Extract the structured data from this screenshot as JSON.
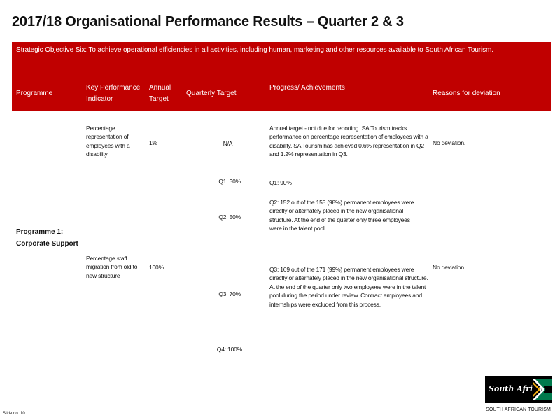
{
  "title": "2017/18 Organisational Performance Results – Quarter 2 & 3",
  "objective": "Strategic Objective Six: To achieve operational efficiencies in all activities, including human, marketing and other resources available to South African Tourism.",
  "headers": {
    "programme": "Programme",
    "kpi": "Key Performance Indicator",
    "annual_target": "Annual Target",
    "quarterly_target": "Quarterly Target",
    "progress": "Progress/ Achievements",
    "reasons": "Reasons for deviation"
  },
  "programme": "Programme 1: Corporate Support",
  "rows": [
    {
      "kpi": "Percentage representation of employees with a disability",
      "annual_target": "1%",
      "quarterly_target": "N/A",
      "progress": "Annual target - not due for reporting. SA Tourism tracks performance on percentage representation of employees with a disability. SA Tourism has achieved 0.6% representation in Q2 and 1.2% representation in Q3.",
      "reason": "No deviation."
    },
    {
      "kpi": "Percentage staff migration from old to new structure",
      "annual_target": "100%",
      "reason": "No deviation.",
      "quarters": [
        {
          "target": "Q1: 30%",
          "progress": "Q1: 90%"
        },
        {
          "target": "Q2: 50%",
          "progress": "Q2: 152 out of the 155 (98%) permanent employees were directly or alternately placed in the new organisational structure. At the end of the quarter only three employees were in the talent pool."
        },
        {
          "target": "Q3: 70%",
          "progress": "Q3: 169 out of the 171 (99%)  permanent employees were directly or alternately placed in the new organisational structure. At the end of the quarter only two employees were in the talent pool during the period under review. Contract employees and internships were excluded from this process."
        },
        {
          "target": "Q4: 100%",
          "progress": ""
        }
      ]
    }
  ],
  "slide_number": "Slide no. 10",
  "logo": {
    "text": "South Africa",
    "caption": "SOUTH AFRICAN TOURISM"
  }
}
